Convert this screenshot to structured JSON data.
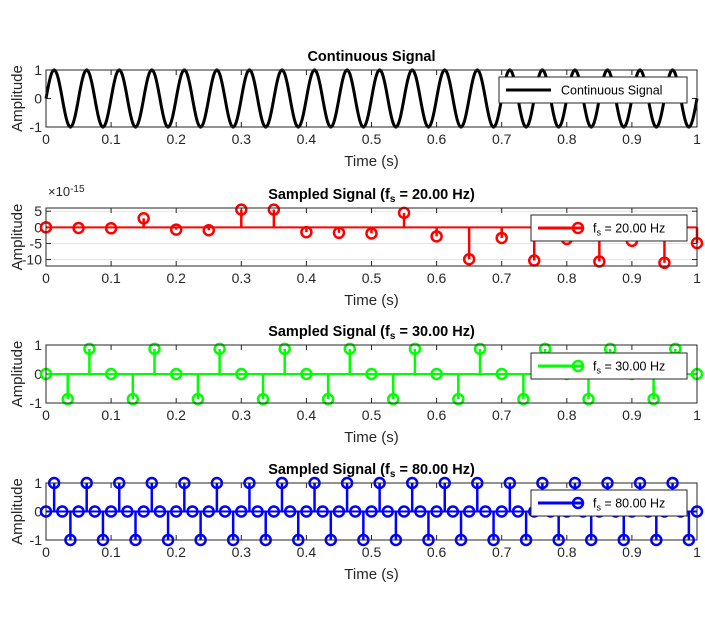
{
  "window": {
    "width": 705,
    "height": 636
  },
  "chart_data": [
    {
      "type": "line",
      "title": "Continuous Signal",
      "xlabel": "Time (s)",
      "ylabel": "Amplitude",
      "xlim": [
        0,
        1
      ],
      "ylim": [
        -1,
        1
      ],
      "xticks": [
        0,
        0.1,
        0.2,
        0.3,
        0.4,
        0.5,
        0.6,
        0.7,
        0.8,
        0.9,
        1
      ],
      "xtick_labels": [
        "0",
        "0.1",
        "0.2",
        "0.3",
        "0.4",
        "0.5",
        "0.6",
        "0.7",
        "0.8",
        "0.9",
        "1"
      ],
      "yticks": [
        -1,
        0,
        1
      ],
      "ytick_labels": [
        "-1",
        "0",
        "1"
      ],
      "legend": {
        "location": "top-right",
        "entries": [
          "Continuous Signal"
        ]
      },
      "series": [
        {
          "name": "Continuous Signal",
          "function": "sin(2*pi*20*t)",
          "frequency_hz": 20,
          "color": "#000000"
        }
      ]
    },
    {
      "type": "stem",
      "title": "Sampled Signal (f",
      "title_sub": "s",
      "title_tail": " = 20.00 Hz)",
      "xlabel": "Time (s)",
      "ylabel": "Amplitude",
      "xlim": [
        0,
        1
      ],
      "ylim": [
        -12,
        6
      ],
      "exponent_prefix": "×10",
      "exponent_power": "-15",
      "xticks": [
        0,
        0.1,
        0.2,
        0.3,
        0.4,
        0.5,
        0.6,
        0.7,
        0.8,
        0.9,
        1
      ],
      "xtick_labels": [
        "0",
        "0.1",
        "0.2",
        "0.3",
        "0.4",
        "0.5",
        "0.6",
        "0.7",
        "0.8",
        "0.9",
        "1"
      ],
      "yticks": [
        -10,
        -5,
        0,
        5
      ],
      "ytick_labels": [
        "-10",
        "-5",
        "0",
        "5"
      ],
      "grid": "horizontal",
      "legend": {
        "location": "right",
        "prefix": "f",
        "sub": "s",
        "suffix": " = 20.00 Hz"
      },
      "series": [
        {
          "name": "fs = 20.00 Hz",
          "color": "#ff0000",
          "x": [
            0,
            0.05,
            0.1,
            0.15,
            0.2,
            0.25,
            0.3,
            0.35,
            0.4,
            0.45,
            0.5,
            0.55,
            0.6,
            0.65,
            0.7,
            0.75,
            0.8,
            0.85,
            0.9,
            0.95,
            1.0
          ],
          "y": [
            0,
            -0.2,
            -0.3,
            2.8,
            -0.7,
            -0.9,
            5.5,
            5.5,
            -1.5,
            -1.7,
            -1.9,
            4.5,
            -2.8,
            -9.9,
            -3.3,
            -10.3,
            -3.6,
            -10.6,
            -4.2,
            -11.0,
            -4.9
          ]
        }
      ]
    },
    {
      "type": "stem",
      "title": "Sampled Signal (f",
      "title_sub": "s",
      "title_tail": " = 30.00 Hz)",
      "xlabel": "Time (s)",
      "ylabel": "Amplitude",
      "xlim": [
        0,
        1
      ],
      "ylim": [
        -1,
        1
      ],
      "xticks": [
        0,
        0.1,
        0.2,
        0.3,
        0.4,
        0.5,
        0.6,
        0.7,
        0.8,
        0.9,
        1
      ],
      "xtick_labels": [
        "0",
        "0.1",
        "0.2",
        "0.3",
        "0.4",
        "0.5",
        "0.6",
        "0.7",
        "0.8",
        "0.9",
        "1"
      ],
      "yticks": [
        -1,
        0,
        1
      ],
      "ytick_labels": [
        "-1",
        "0",
        "1"
      ],
      "legend": {
        "location": "right",
        "prefix": "f",
        "sub": "s",
        "suffix": " = 30.00 Hz"
      },
      "series": [
        {
          "name": "fs = 30.00 Hz",
          "color": "#00ff00",
          "sample_rate_hz": 30,
          "function": "sin(2*pi*20*t)"
        }
      ]
    },
    {
      "type": "stem",
      "title": "Sampled Signal (f",
      "title_sub": "s",
      "title_tail": " = 80.00 Hz)",
      "xlabel": "Time (s)",
      "ylabel": "Amplitude",
      "xlim": [
        0,
        1
      ],
      "ylim": [
        -1,
        1
      ],
      "xticks": [
        0,
        0.1,
        0.2,
        0.3,
        0.4,
        0.5,
        0.6,
        0.7,
        0.8,
        0.9,
        1
      ],
      "xtick_labels": [
        "0",
        "0.1",
        "0.2",
        "0.3",
        "0.4",
        "0.5",
        "0.6",
        "0.7",
        "0.8",
        "0.9",
        "1"
      ],
      "yticks": [
        -1,
        0,
        1
      ],
      "ytick_labels": [
        "-1",
        "0",
        "1"
      ],
      "legend": {
        "location": "right",
        "prefix": "f",
        "sub": "s",
        "suffix": " = 80.00 Hz"
      },
      "series": [
        {
          "name": "fs = 80.00 Hz",
          "color": "#0000ff",
          "sample_rate_hz": 80,
          "function": "sin(2*pi*20*t)"
        }
      ]
    }
  ]
}
